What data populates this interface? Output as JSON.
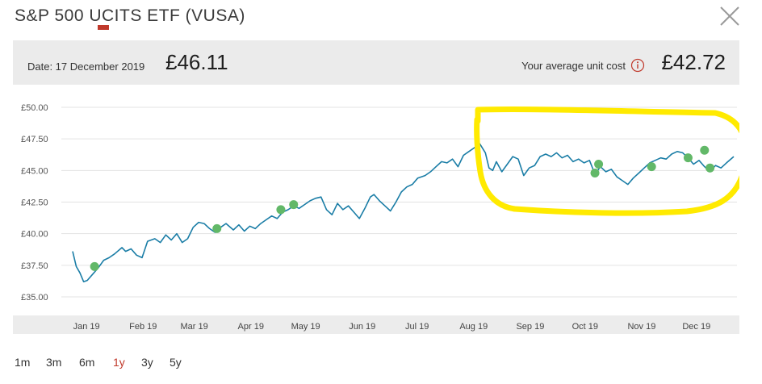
{
  "title": "S&P 500 UCITS ETF (VUSA)",
  "header": {
    "date_label": "Date: 17 December 2019",
    "price": "£46.11",
    "avg_cost_label": "Your average unit cost",
    "avg_cost": "£42.72"
  },
  "colors": {
    "line": "#1a7da6",
    "marker": "#62b868",
    "highlight": "#ffea00",
    "active_period": "#c0392b"
  },
  "icons": {
    "close": "close-icon",
    "info": "info-icon"
  },
  "periods": [
    {
      "label": "1m",
      "active": false
    },
    {
      "label": "3m",
      "active": false
    },
    {
      "label": "6m",
      "active": false
    },
    {
      "label": "1y",
      "active": true
    },
    {
      "label": "3y",
      "active": false
    },
    {
      "label": "5y",
      "active": false
    }
  ],
  "chart_data": {
    "type": "line",
    "y_ticks": [
      "£50.00",
      "£47.50",
      "£45.00",
      "£42.50",
      "£40.00",
      "£37.50",
      "£35.00"
    ],
    "ylim": [
      35,
      50
    ],
    "x_tick_labels": [
      "Jan 19",
      "Feb 19",
      "Mar 19",
      "Apr 19",
      "May 19",
      "Jun 19",
      "Jul 19",
      "Aug 19",
      "Sep 19",
      "Oct 19",
      "Nov 19",
      "Dec 19"
    ],
    "grid": true,
    "series": [
      {
        "points": [
          [
            "2018-12-20",
            38.6
          ],
          [
            "2018-12-22",
            37.4
          ],
          [
            "2018-12-24",
            36.9
          ],
          [
            "2018-12-26",
            36.2
          ],
          [
            "2018-12-28",
            36.3
          ],
          [
            "2018-12-31",
            36.8
          ],
          [
            "2019-01-03",
            37.3
          ],
          [
            "2019-01-06",
            37.9
          ],
          [
            "2019-01-09",
            38.1
          ],
          [
            "2019-01-12",
            38.4
          ],
          [
            "2019-01-16",
            38.9
          ],
          [
            "2019-01-18",
            38.6
          ],
          [
            "2019-01-21",
            38.8
          ],
          [
            "2019-01-24",
            38.3
          ],
          [
            "2019-01-27",
            38.1
          ],
          [
            "2019-01-30",
            39.4
          ],
          [
            "2019-02-03",
            39.6
          ],
          [
            "2019-02-06",
            39.3
          ],
          [
            "2019-02-09",
            39.9
          ],
          [
            "2019-02-12",
            39.5
          ],
          [
            "2019-02-15",
            40.0
          ],
          [
            "2019-02-18",
            39.3
          ],
          [
            "2019-02-21",
            39.6
          ],
          [
            "2019-02-24",
            40.5
          ],
          [
            "2019-02-27",
            40.9
          ],
          [
            "2019-03-02",
            40.8
          ],
          [
            "2019-03-05",
            40.4
          ],
          [
            "2019-03-08",
            40.1
          ],
          [
            "2019-03-11",
            40.5
          ],
          [
            "2019-03-14",
            40.8
          ],
          [
            "2019-03-18",
            40.3
          ],
          [
            "2019-03-21",
            40.7
          ],
          [
            "2019-03-24",
            40.2
          ],
          [
            "2019-03-27",
            40.6
          ],
          [
            "2019-03-30",
            40.4
          ],
          [
            "2019-04-02",
            40.8
          ],
          [
            "2019-04-05",
            41.1
          ],
          [
            "2019-04-08",
            41.4
          ],
          [
            "2019-04-11",
            41.2
          ],
          [
            "2019-04-14",
            41.7
          ],
          [
            "2019-04-17",
            41.9
          ],
          [
            "2019-04-20",
            42.2
          ],
          [
            "2019-04-23",
            42.0
          ],
          [
            "2019-04-26",
            42.3
          ],
          [
            "2019-04-29",
            42.6
          ],
          [
            "2019-05-02",
            42.8
          ],
          [
            "2019-05-05",
            42.9
          ],
          [
            "2019-05-08",
            41.9
          ],
          [
            "2019-05-11",
            41.5
          ],
          [
            "2019-05-14",
            42.4
          ],
          [
            "2019-05-17",
            41.9
          ],
          [
            "2019-05-20",
            42.2
          ],
          [
            "2019-05-23",
            41.7
          ],
          [
            "2019-05-26",
            41.2
          ],
          [
            "2019-05-29",
            42.0
          ],
          [
            "2019-06-01",
            42.9
          ],
          [
            "2019-06-03",
            43.1
          ],
          [
            "2019-06-06",
            42.6
          ],
          [
            "2019-06-09",
            42.2
          ],
          [
            "2019-06-12",
            41.8
          ],
          [
            "2019-06-15",
            42.5
          ],
          [
            "2019-06-18",
            43.3
          ],
          [
            "2019-06-21",
            43.7
          ],
          [
            "2019-06-24",
            43.9
          ],
          [
            "2019-06-27",
            44.4
          ],
          [
            "2019-07-01",
            44.6
          ],
          [
            "2019-07-04",
            44.9
          ],
          [
            "2019-07-07",
            45.3
          ],
          [
            "2019-07-10",
            45.7
          ],
          [
            "2019-07-13",
            45.6
          ],
          [
            "2019-07-16",
            45.9
          ],
          [
            "2019-07-19",
            45.3
          ],
          [
            "2019-07-22",
            46.2
          ],
          [
            "2019-07-25",
            46.5
          ],
          [
            "2019-07-28",
            46.8
          ],
          [
            "2019-07-31",
            47.1
          ],
          [
            "2019-08-03",
            46.4
          ],
          [
            "2019-08-05",
            45.2
          ],
          [
            "2019-08-07",
            45.0
          ],
          [
            "2019-08-09",
            45.7
          ],
          [
            "2019-08-12",
            44.9
          ],
          [
            "2019-08-15",
            45.5
          ],
          [
            "2019-08-18",
            46.1
          ],
          [
            "2019-08-21",
            45.9
          ],
          [
            "2019-08-24",
            44.6
          ],
          [
            "2019-08-27",
            45.2
          ],
          [
            "2019-08-30",
            45.4
          ],
          [
            "2019-09-02",
            46.1
          ],
          [
            "2019-09-05",
            46.3
          ],
          [
            "2019-09-08",
            46.1
          ],
          [
            "2019-09-11",
            46.4
          ],
          [
            "2019-09-14",
            46.0
          ],
          [
            "2019-09-17",
            46.2
          ],
          [
            "2019-09-20",
            45.7
          ],
          [
            "2019-09-23",
            45.9
          ],
          [
            "2019-09-26",
            45.6
          ],
          [
            "2019-09-29",
            45.8
          ],
          [
            "2019-10-02",
            44.7
          ],
          [
            "2019-10-05",
            45.3
          ],
          [
            "2019-10-08",
            44.9
          ],
          [
            "2019-10-11",
            45.1
          ],
          [
            "2019-10-14",
            44.5
          ],
          [
            "2019-10-17",
            44.2
          ],
          [
            "2019-10-20",
            43.9
          ],
          [
            "2019-10-23",
            44.4
          ],
          [
            "2019-10-26",
            44.8
          ],
          [
            "2019-10-29",
            45.2
          ],
          [
            "2019-11-01",
            45.6
          ],
          [
            "2019-11-04",
            45.8
          ],
          [
            "2019-11-07",
            46.0
          ],
          [
            "2019-11-10",
            45.9
          ],
          [
            "2019-11-13",
            46.3
          ],
          [
            "2019-11-16",
            46.5
          ],
          [
            "2019-11-19",
            46.4
          ],
          [
            "2019-11-22",
            46.0
          ],
          [
            "2019-11-25",
            45.5
          ],
          [
            "2019-11-28",
            45.8
          ],
          [
            "2019-12-01",
            45.3
          ],
          [
            "2019-12-04",
            44.9
          ],
          [
            "2019-12-07",
            45.4
          ],
          [
            "2019-12-10",
            45.2
          ],
          [
            "2019-12-13",
            45.6
          ],
          [
            "2019-12-17",
            46.1
          ]
        ]
      }
    ],
    "purchases": [
      [
        "2019-01-01",
        37.4
      ],
      [
        "2019-03-09",
        40.4
      ],
      [
        "2019-04-13",
        41.9
      ],
      [
        "2019-04-20",
        42.3
      ],
      [
        "2019-10-02",
        44.8
      ],
      [
        "2019-10-04",
        45.5
      ],
      [
        "2019-11-02",
        45.3
      ],
      [
        "2019-11-22",
        46.0
      ],
      [
        "2019-12-01",
        46.6
      ],
      [
        "2019-12-04",
        45.2
      ]
    ]
  }
}
